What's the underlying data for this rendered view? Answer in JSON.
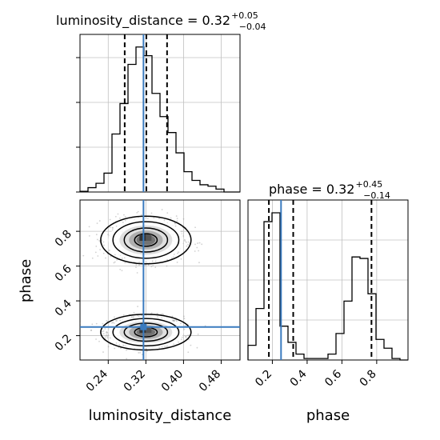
{
  "chart_data": {
    "type": "corner",
    "parameters": [
      "luminosity_distance",
      "phase"
    ],
    "truths": {
      "luminosity_distance": 0.32,
      "phase": 0.25
    },
    "colors": {
      "truth": "#3a7bbf",
      "hist": "#000000",
      "grid": "#c0c0c0",
      "scatter": "#9a9a9a"
    },
    "grid": true,
    "panels": [
      {
        "kind": "hist1d",
        "param": "luminosity_distance",
        "title_prefix": "luminosity_distance = 0.32",
        "title_plus": "+0.05",
        "title_minus": "−0.04",
        "quantiles": [
          0.275,
          0.321,
          0.365
        ],
        "xlim": [
          0.18,
          0.52
        ],
        "bin_edges": [
          0.18,
          0.197,
          0.214,
          0.231,
          0.248,
          0.265,
          0.282,
          0.299,
          0.316,
          0.333,
          0.35,
          0.367,
          0.384,
          0.401,
          0.418,
          0.435,
          0.452,
          0.469,
          0.486,
          0.503,
          0.52
        ],
        "counts": [
          0.5,
          3,
          6,
          13,
          40,
          61,
          88,
          100,
          94,
          68,
          52,
          41,
          27,
          14,
          8,
          5,
          4,
          2,
          0,
          0
        ]
      },
      {
        "kind": "hist1d",
        "param": "phase",
        "title_prefix": "phase = 0.32",
        "title_plus": "+0.45",
        "title_minus": "−0.14",
        "quantiles": [
          0.18,
          0.32,
          0.77
        ],
        "xlim": [
          0.06,
          0.98
        ],
        "bin_edges": [
          0.06,
          0.106,
          0.152,
          0.198,
          0.244,
          0.29,
          0.336,
          0.382,
          0.428,
          0.474,
          0.52,
          0.566,
          0.612,
          0.658,
          0.704,
          0.75,
          0.796,
          0.842,
          0.888,
          0.934,
          0.98
        ],
        "counts": [
          10,
          35,
          94,
          100,
          23,
          12,
          4,
          1,
          1,
          1,
          4,
          18,
          40,
          70,
          69,
          45,
          14,
          8,
          1,
          0
        ]
      },
      {
        "kind": "hist2d",
        "x": "luminosity_distance",
        "y": "phase",
        "xlim": [
          0.18,
          0.52
        ],
        "ylim": [
          0.06,
          0.98
        ],
        "modes": [
          {
            "x": 0.32,
            "y": 0.22,
            "sx": 0.04,
            "sy": 0.045
          },
          {
            "x": 0.32,
            "y": 0.75,
            "sx": 0.04,
            "sy": 0.06
          }
        ]
      }
    ],
    "x_ticks": {
      "luminosity_distance": [
        "0.24",
        "0.32",
        "0.40",
        "0.48"
      ],
      "phase": [
        "0.2",
        "0.4",
        "0.6",
        "0.8"
      ]
    },
    "y_ticks": {
      "phase": [
        "0.2",
        "0.4",
        "0.6",
        "0.8"
      ]
    },
    "xlabel_left": "luminosity_distance",
    "xlabel_right": "phase",
    "ylabel": "phase"
  }
}
